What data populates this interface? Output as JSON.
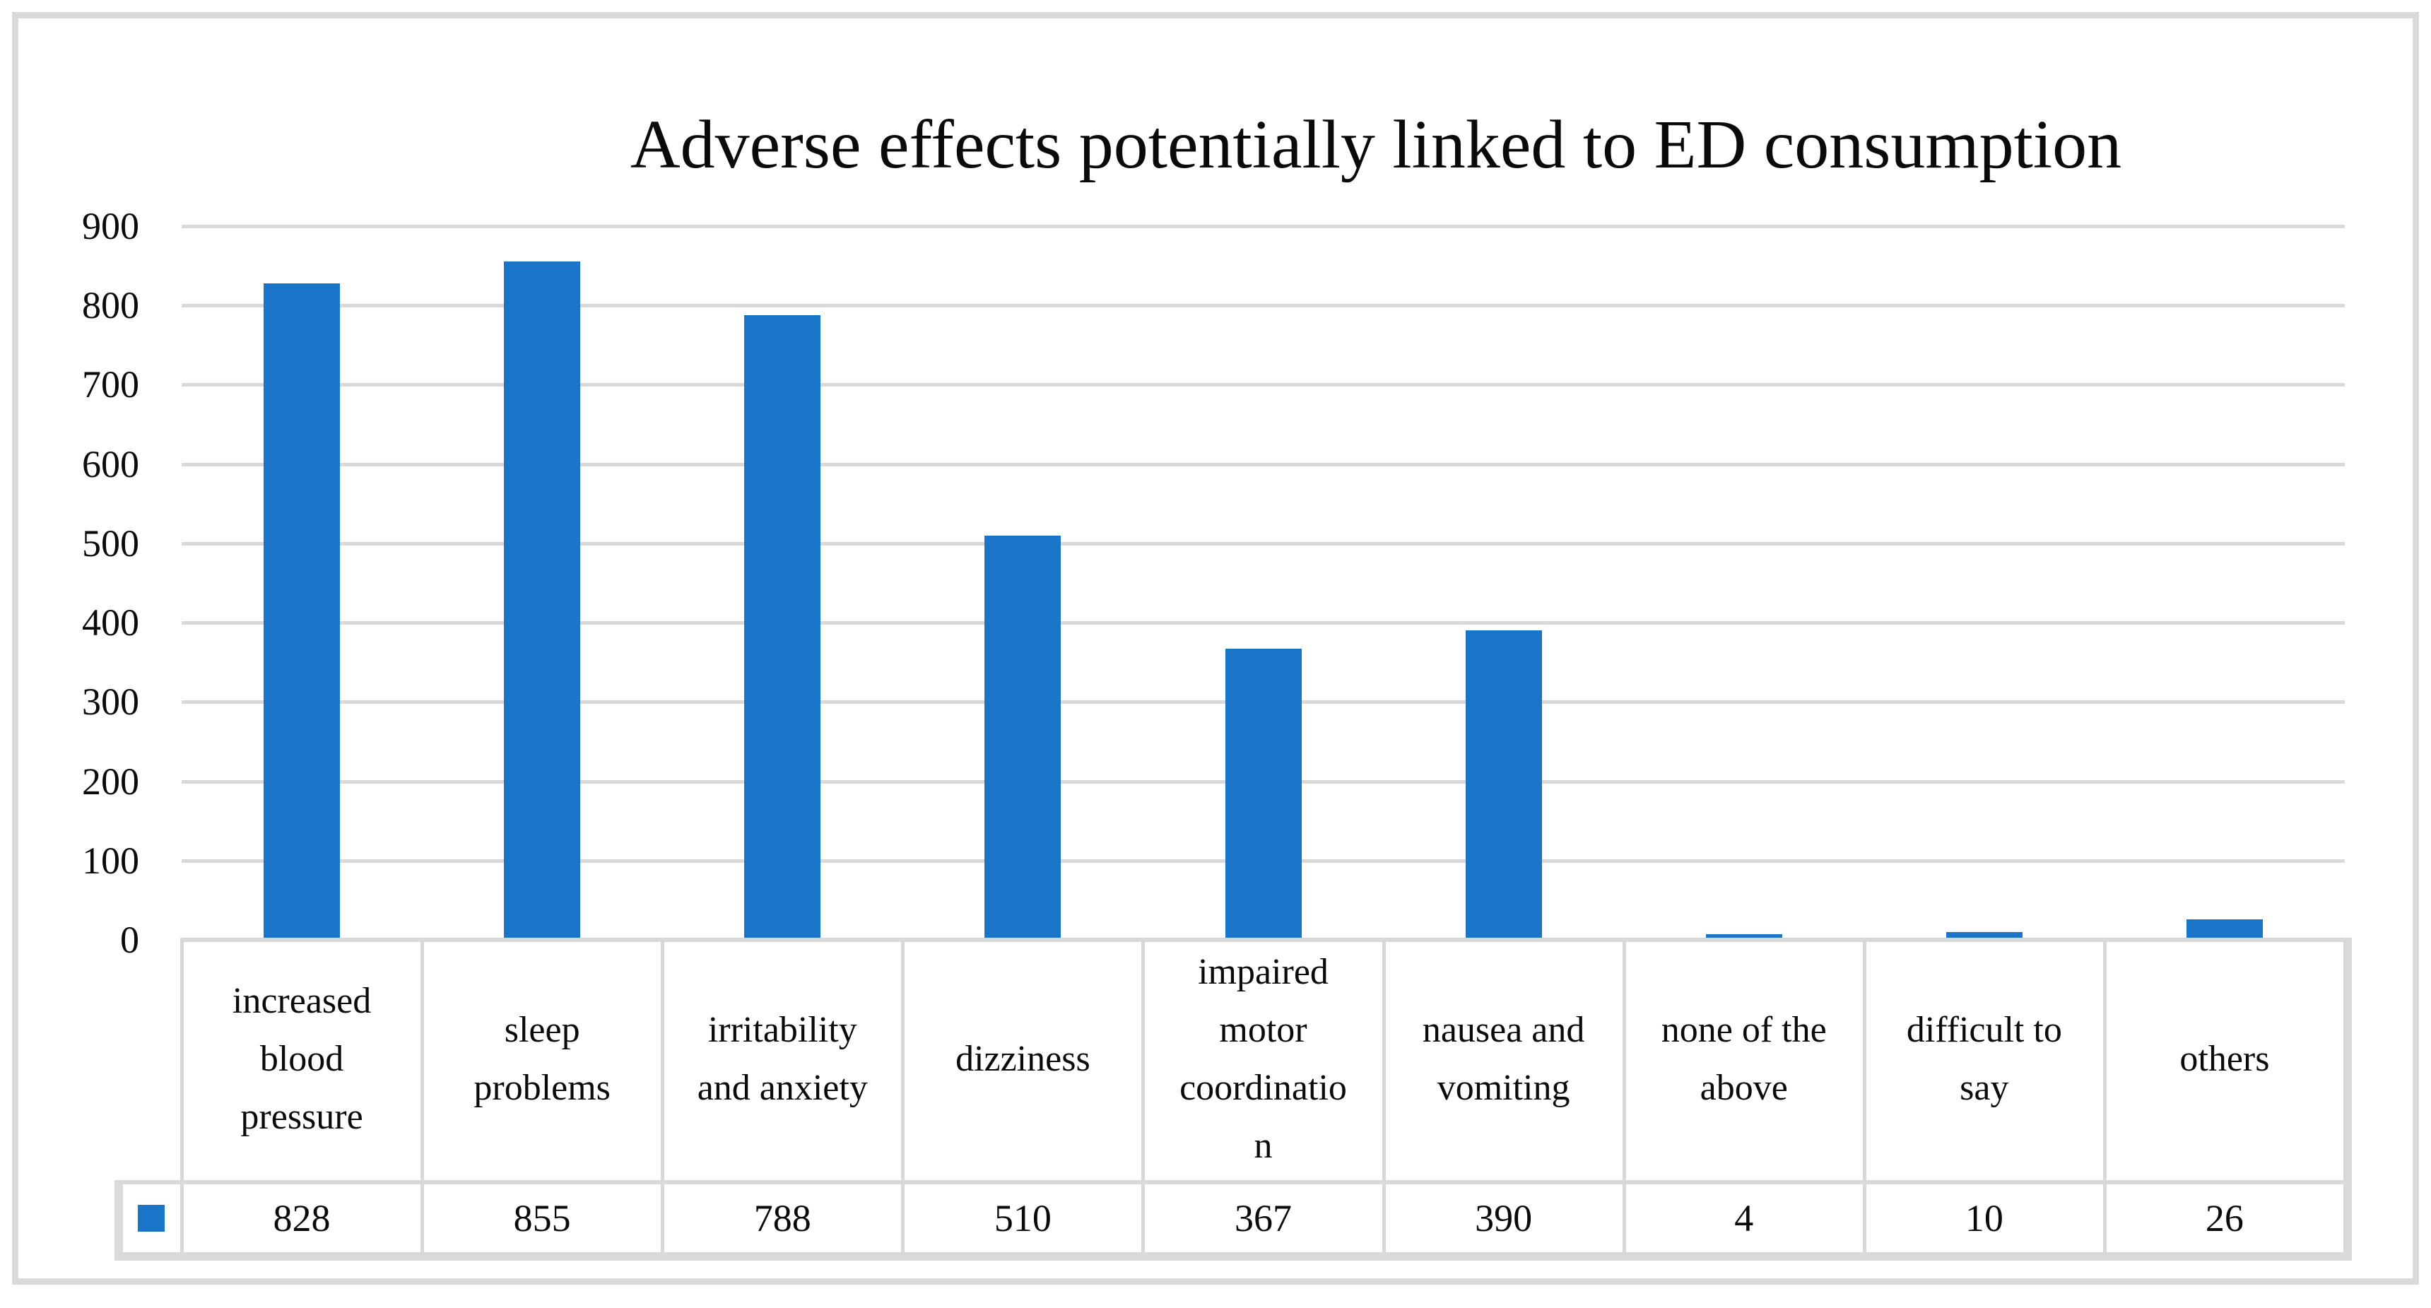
{
  "chart_data": {
    "type": "bar",
    "title": "Adverse effects potentially linked to ED consumption",
    "categories": [
      "increased blood pressure",
      "sleep problems",
      "irritability and anxiety",
      "dizziness",
      "impaired motor coordination",
      "nausea and vomiting",
      "none of the above",
      "difficult to say",
      "others"
    ],
    "categories_display": [
      "increased\nblood\npressure",
      "sleep\nproblems",
      "irritability\nand anxiety",
      "dizziness",
      "impaired\nmotor\ncoordinatio\nn",
      "nausea and\nvomiting",
      "none of the\nabove",
      "difficult to\nsay",
      "others"
    ],
    "values": [
      828,
      855,
      788,
      510,
      367,
      390,
      4,
      10,
      26
    ],
    "data_table_values": [
      "828",
      "855",
      "788",
      "510",
      "367",
      "390",
      "4",
      "10",
      "26"
    ],
    "ylim": [
      0,
      900
    ],
    "y_tick_labels": [
      "900",
      "800",
      "700",
      "600",
      "500",
      "400",
      "300",
      "200",
      "100",
      "0"
    ],
    "grid": "horizontal gridlines, data table below with legend key",
    "legend_text": "",
    "bar_color": "#1A74C8",
    "grid_color": "#D9D9D9",
    "frame_color": "#D9D9D9",
    "text_color": "#0a0a0a"
  }
}
